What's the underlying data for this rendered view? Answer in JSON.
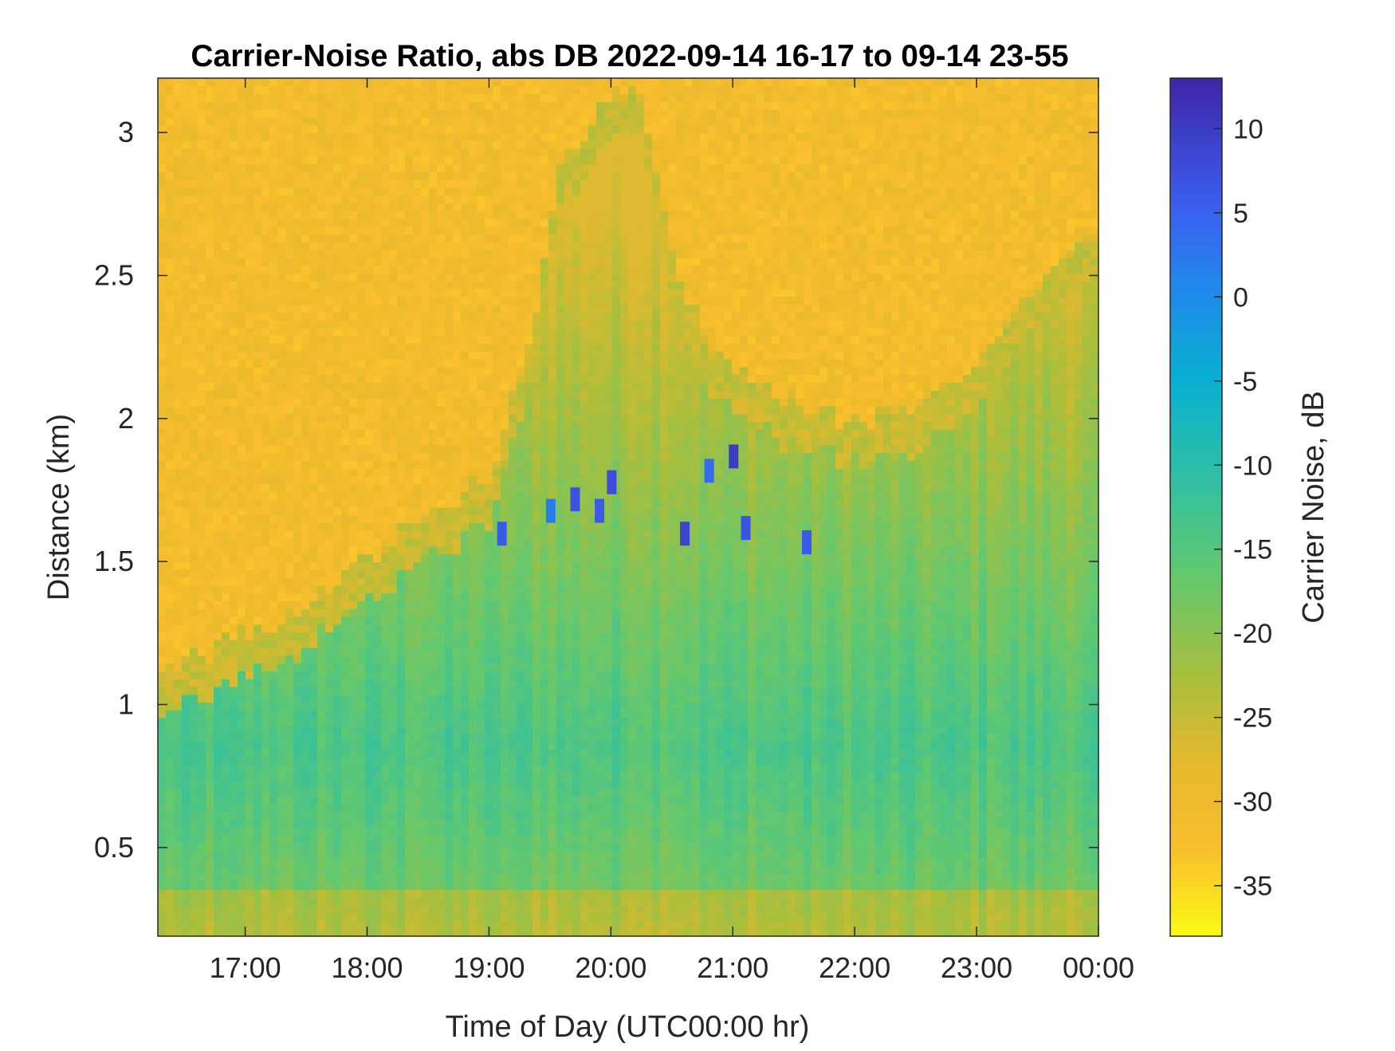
{
  "chart_data": {
    "type": "heatmap",
    "title": "Carrier-Noise Ratio, abs DB 2022-09-14 16-17 to 09-14 23-55",
    "xlabel": "Time of Day (UTC00:00 hr)",
    "ylabel": "Distance (km)",
    "x_range_hours": [
      16.283,
      24.0
    ],
    "ylim": [
      0.19,
      3.19
    ],
    "x_ticks": [
      {
        "value": 17,
        "label": "17:00"
      },
      {
        "value": 18,
        "label": "18:00"
      },
      {
        "value": 19,
        "label": "19:00"
      },
      {
        "value": 20,
        "label": "20:00"
      },
      {
        "value": 21,
        "label": "21:00"
      },
      {
        "value": 22,
        "label": "22:00"
      },
      {
        "value": 23,
        "label": "23:00"
      },
      {
        "value": 24,
        "label": "00:00"
      }
    ],
    "y_ticks": [
      {
        "value": 0.5,
        "label": "0.5"
      },
      {
        "value": 1.0,
        "label": "1"
      },
      {
        "value": 1.5,
        "label": "1.5"
      },
      {
        "value": 2.0,
        "label": "2"
      },
      {
        "value": 2.5,
        "label": "2.5"
      },
      {
        "value": 3.0,
        "label": "3"
      }
    ],
    "colorbar": {
      "label": "Carrier Noise, dB",
      "range": [
        -38,
        13
      ],
      "colormap": "parula (reversed: yellow = low, dark blue = high)",
      "ticks": [
        {
          "value": 10,
          "label": "10"
        },
        {
          "value": 5,
          "label": "5"
        },
        {
          "value": 0,
          "label": "0"
        },
        {
          "value": -5,
          "label": "-5"
        },
        {
          "value": -10,
          "label": "-10"
        },
        {
          "value": -15,
          "label": "-15"
        },
        {
          "value": -20,
          "label": "-20"
        },
        {
          "value": -25,
          "label": "-25"
        },
        {
          "value": -30,
          "label": "-30"
        },
        {
          "value": -35,
          "label": "-35"
        }
      ]
    },
    "boundary_height_km": {
      "hours": [
        16.28,
        16.5,
        17.0,
        17.5,
        18.0,
        18.5,
        19.0,
        19.3,
        19.6,
        19.9,
        20.2,
        20.5,
        20.8,
        21.1,
        21.5,
        22.0,
        22.5,
        23.0,
        23.5,
        24.0
      ],
      "km": [
        1.08,
        1.15,
        1.25,
        1.35,
        1.5,
        1.65,
        1.8,
        2.2,
        2.9,
        3.1,
        3.19,
        2.6,
        2.25,
        2.15,
        2.05,
        2.0,
        2.05,
        2.2,
        2.45,
        2.65
      ]
    },
    "low_noise_cells": [
      {
        "hour": 19.1,
        "km": 1.6,
        "value": 6
      },
      {
        "hour": 19.5,
        "km": 1.68,
        "value": 2
      },
      {
        "hour": 19.7,
        "km": 1.72,
        "value": 7
      },
      {
        "hour": 19.9,
        "km": 1.68,
        "value": 6
      },
      {
        "hour": 20.0,
        "km": 1.78,
        "value": 8
      },
      {
        "hour": 20.6,
        "km": 1.6,
        "value": 9
      },
      {
        "hour": 20.8,
        "km": 1.82,
        "value": 4
      },
      {
        "hour": 21.0,
        "km": 1.87,
        "value": 10
      },
      {
        "hour": 21.1,
        "km": 1.62,
        "value": 7
      },
      {
        "hour": 21.6,
        "km": 1.57,
        "value": 6
      }
    ]
  }
}
